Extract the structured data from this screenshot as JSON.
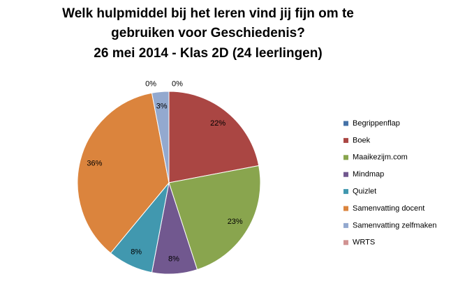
{
  "chart_data": {
    "type": "pie",
    "title": [
      "Welk hulpmiddel bij het leren vind jij fijn om te",
      "gebruiken voor Geschiedenis?",
      "26 mei 2014 - Klas 2D (24 leerlingen)"
    ],
    "categories": [
      "Begrippenflap",
      "Boek",
      "Maaikezijm.com",
      "Mindmap",
      "Quizlet",
      "Samenvatting docent",
      "Samenvatting zelfmaken",
      "WRTS"
    ],
    "values": [
      0,
      22,
      23,
      8,
      8,
      36,
      3,
      0
    ],
    "value_labels": [
      "0%",
      "22%",
      "23%",
      "8%",
      "8%",
      "36%",
      "3%",
      "0%"
    ],
    "colors": [
      "#4572a7",
      "#aa4643",
      "#89a54e",
      "#71588f",
      "#4198af",
      "#db843d",
      "#93a9cf",
      "#d19392"
    ],
    "legend": "right"
  }
}
